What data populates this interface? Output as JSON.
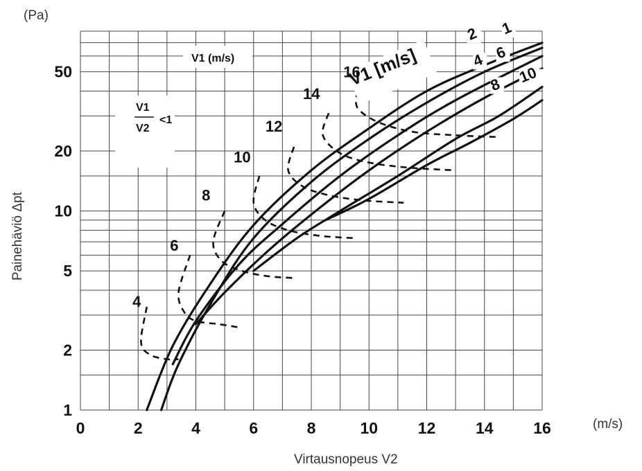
{
  "chart_data": {
    "type": "line",
    "title": "",
    "xlabel": "Virtausnopeus V2",
    "ylabel": "Painehäviö Δpt",
    "x_unit": "(m/s)",
    "y_unit": "(Pa)",
    "xlim": [
      0,
      16
    ],
    "ylim": [
      1,
      80
    ],
    "y_scale": "log",
    "grid": true,
    "x_ticks": [
      "0",
      "2",
      "4",
      "6",
      "8",
      "10",
      "12",
      "14",
      "16"
    ],
    "y_ticks": [
      {
        "value": 1,
        "label": "1"
      },
      {
        "value": 2,
        "label": "2"
      },
      {
        "value": 5,
        "label": "5"
      },
      {
        "value": 10,
        "label": "10"
      },
      {
        "value": 20,
        "label": "20"
      },
      {
        "value": 50,
        "label": "50"
      }
    ],
    "annotations": {
      "v1_box": "V1 (m/s)",
      "ratio_numerator": "V1",
      "ratio_denominator": "V2",
      "ratio_rel": "<1",
      "family_label": "V1 [m/s]"
    },
    "solid_series_note": "solid curves: constant V1 [m/s] = 1, 2, 4, 6, 8, 10",
    "solid_series": [
      {
        "name": "1",
        "x": [
          2.3,
          3.2,
          4.5,
          6,
          8,
          10,
          12,
          14,
          16
        ],
        "y": [
          1,
          2.1,
          4.3,
          8.5,
          16,
          26,
          40,
          54,
          70
        ]
      },
      {
        "name": "2",
        "x": [
          2.8,
          3.4,
          4.6,
          6,
          8,
          10,
          12,
          14,
          16
        ],
        "y": [
          1,
          1.7,
          3.6,
          7.3,
          14,
          23,
          35,
          50,
          66
        ]
      },
      {
        "name": "4",
        "x": [
          3.2,
          4,
          5.5,
          7,
          9,
          11,
          13,
          16
        ],
        "y": [
          1.7,
          2.8,
          5.4,
          8.6,
          15,
          24,
          36,
          60
        ]
      },
      {
        "name": "6",
        "x": [
          4,
          5,
          6.5,
          8,
          10,
          12,
          14,
          16
        ],
        "y": [
          2.7,
          3.9,
          6.3,
          9.6,
          16,
          25,
          37,
          52
        ]
      },
      {
        "name": "8",
        "x": [
          6,
          7.5,
          9,
          11,
          13,
          14.5,
          16
        ],
        "y": [
          5,
          7.3,
          10,
          15,
          23,
          30,
          42
        ]
      },
      {
        "name": "10",
        "x": [
          8.5,
          10,
          12,
          13.5,
          15,
          16
        ],
        "y": [
          9,
          11.5,
          17,
          22,
          29,
          36
        ]
      }
    ],
    "dashed_series_note": "dashed curves: constant V2 [m/s] = 4, 6, 8, 10, 12, 14, 16",
    "dashed_series": [
      {
        "name": "4",
        "x": [
          2.3,
          2.1,
          2.4,
          3.0,
          3.4
        ],
        "y": [
          3.3,
          2.2,
          1.9,
          1.8,
          1.8
        ]
      },
      {
        "name": "6",
        "x": [
          3.8,
          3.4,
          3.6,
          4.0,
          4.8,
          5.5
        ],
        "y": [
          6.0,
          3.9,
          3.1,
          2.8,
          2.7,
          2.6
        ]
      },
      {
        "name": "8",
        "x": [
          5.0,
          4.6,
          4.9,
          5.6,
          6.5,
          7.5
        ],
        "y": [
          10.0,
          7.0,
          5.6,
          5.0,
          4.7,
          4.6
        ]
      },
      {
        "name": "10",
        "x": [
          6.2,
          6.0,
          6.4,
          7.2,
          8.3,
          9.5
        ],
        "y": [
          15.0,
          11.0,
          9.0,
          8.0,
          7.5,
          7.3
        ]
      },
      {
        "name": "12",
        "x": [
          7.4,
          7.2,
          7.7,
          8.6,
          9.8,
          11.2
        ],
        "y": [
          21.0,
          16.0,
          13.3,
          12.0,
          11.3,
          11.0
        ]
      },
      {
        "name": "14",
        "x": [
          8.6,
          8.4,
          9.0,
          10.0,
          11.4,
          13.0
        ],
        "y": [
          31.0,
          24.0,
          19.5,
          17.5,
          16.5,
          16.0
        ]
      },
      {
        "name": "16",
        "x": [
          9.6,
          9.6,
          10.3,
          11.5,
          13.0,
          14.5
        ],
        "y": [
          40.0,
          33.0,
          28.0,
          25.0,
          24.0,
          23.5
        ]
      }
    ]
  },
  "colors": {
    "ink": "#111111",
    "grid": "#444444"
  }
}
